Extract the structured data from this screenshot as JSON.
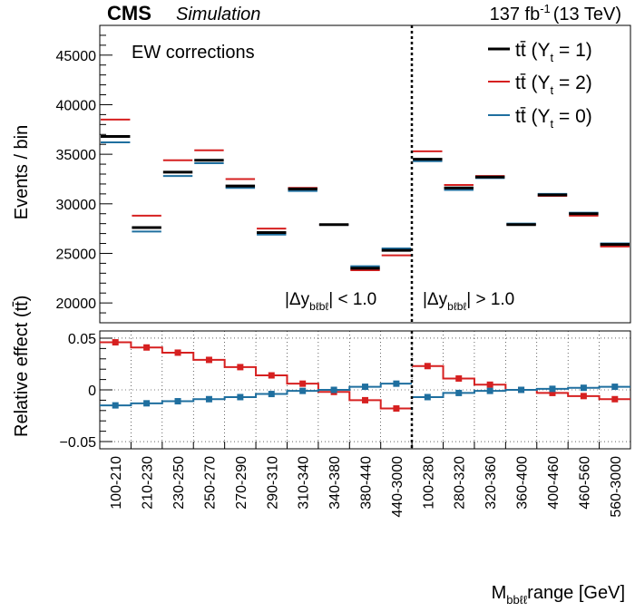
{
  "header": {
    "experiment": "CMS",
    "tag": "Simulation",
    "lumi": "137 fb",
    "lumi_exp": "-1",
    "energy": "(13 TeV)"
  },
  "annotation": "EW corrections",
  "region_labels": {
    "left_pre": "|Δy",
    "left_sub": "bℓbℓ",
    "left_post": "| < 1.0",
    "right_pre": "|Δy",
    "right_sub": "bℓbℓ",
    "right_post": "| > 1.0"
  },
  "colors": {
    "yt1": "#000000",
    "yt2": "#d62020",
    "yt0": "#1f6f9f"
  },
  "chart_data": [
    {
      "type": "step",
      "ylabel": "Events / bin",
      "ylim": [
        18000,
        48000
      ],
      "yticks": [
        20000,
        25000,
        30000,
        35000,
        40000,
        45000
      ],
      "grid": false,
      "legend": "top-right",
      "categories": [
        "100-210",
        "210-230",
        "230-250",
        "250-270",
        "270-290",
        "290-310",
        "310-340",
        "340-380",
        "380-440",
        "440-3000",
        "100-280",
        "280-320",
        "320-360",
        "360-400",
        "400-460",
        "460-560",
        "560-3000"
      ],
      "series": [
        {
          "name": "tt̄  (Y",
          "name_sub": "t",
          "name_post": " = 1)",
          "key": "yt1",
          "values": [
            36800,
            27600,
            33200,
            34400,
            31800,
            27100,
            31500,
            27900,
            23500,
            25300,
            34500,
            31600,
            32700,
            27900,
            30900,
            29000,
            25900
          ]
        },
        {
          "name": "tt̄  (Y",
          "name_sub": "t",
          "name_post": " = 2)",
          "key": "yt2",
          "values": [
            38500,
            28800,
            34400,
            35400,
            32500,
            27500,
            31600,
            27900,
            23300,
            24800,
            35300,
            31900,
            32800,
            27900,
            30800,
            28800,
            25700
          ]
        },
        {
          "name": "tt̄  (Y",
          "name_sub": "t",
          "name_post": " = 0)",
          "key": "yt0",
          "values": [
            36200,
            27200,
            32800,
            34100,
            31600,
            26900,
            31300,
            27900,
            23700,
            25500,
            34300,
            31400,
            32600,
            28000,
            31000,
            29100,
            26000
          ]
        }
      ]
    },
    {
      "type": "step",
      "ylabel": "Relative effect (tt̄)",
      "ylim": [
        -0.057,
        0.057
      ],
      "yticks": [
        -0.05,
        0,
        0.05
      ],
      "ytick_labels": [
        "−0.05",
        "0",
        "0.05"
      ],
      "grid": true,
      "xlabel_pre": "M",
      "xlabel_sub": "bbℓℓ",
      "xlabel_post": "range [GeV]",
      "categories": [
        "100-210",
        "210-230",
        "230-250",
        "250-270",
        "270-290",
        "290-310",
        "310-340",
        "340-380",
        "380-440",
        "440-3000",
        "100-280",
        "280-320",
        "320-360",
        "360-400",
        "400-460",
        "460-560",
        "560-3000"
      ],
      "series": [
        {
          "key": "yt2",
          "values": [
            0.046,
            0.041,
            0.036,
            0.029,
            0.022,
            0.014,
            0.006,
            -0.002,
            -0.01,
            -0.018,
            0.023,
            0.011,
            0.005,
            0.0,
            -0.003,
            -0.006,
            -0.009
          ]
        },
        {
          "key": "yt0",
          "values": [
            -0.015,
            -0.013,
            -0.011,
            -0.009,
            -0.007,
            -0.004,
            -0.001,
            0.0,
            0.003,
            0.006,
            -0.007,
            -0.003,
            -0.001,
            0.0,
            0.001,
            0.002,
            0.003
          ]
        }
      ]
    }
  ]
}
